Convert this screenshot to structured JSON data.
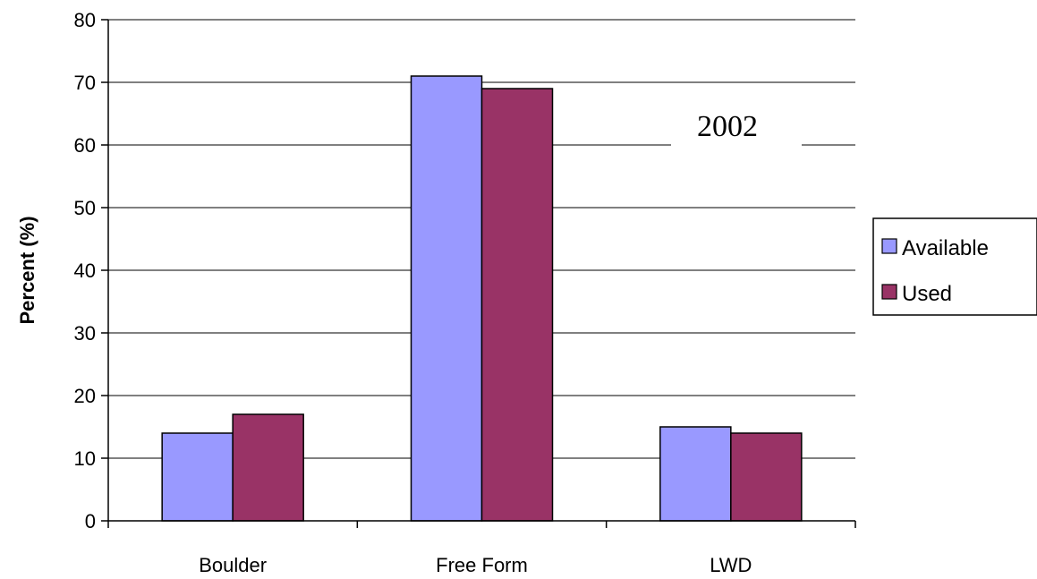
{
  "chart_data": {
    "type": "bar",
    "title": "",
    "annotation": "2002",
    "xlabel": "",
    "ylabel": "Percent (%)",
    "ylim": [
      0,
      80
    ],
    "yticks": [
      0,
      10,
      20,
      30,
      40,
      50,
      60,
      70,
      80
    ],
    "categories": [
      "Boulder",
      "Free Form",
      "LWD"
    ],
    "series": [
      {
        "name": "Available",
        "values": [
          14,
          71,
          15
        ],
        "color": "#9999ff"
      },
      {
        "name": "Used",
        "values": [
          17,
          69,
          14
        ],
        "color": "#993366"
      }
    ],
    "grid": "horizontal",
    "legend_position": "right"
  }
}
